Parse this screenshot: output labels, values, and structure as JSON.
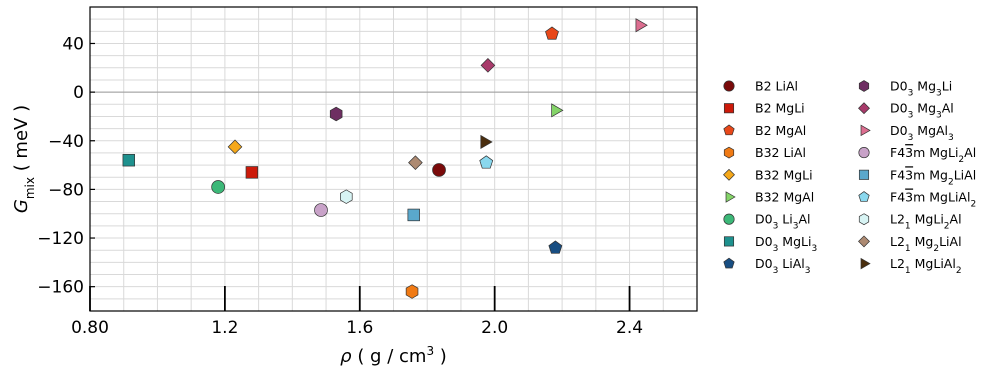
{
  "chart_data": {
    "type": "scatter",
    "title": "",
    "xlabel": {
      "main": "ρ ( g / cm",
      "sup": "3",
      "end": " )"
    },
    "ylabel": {
      "main": "G",
      "sub": "mix",
      "end": " ( meV )"
    },
    "xlim": [
      0.8,
      2.6
    ],
    "ylim": [
      -180,
      70
    ],
    "x_ticks": [
      0.8,
      1.2,
      1.6,
      2.0,
      2.4
    ],
    "x_tick_labels": [
      "0.80",
      "1.2",
      "1.6",
      "2.0",
      "2.4"
    ],
    "y_ticks": [
      40,
      0,
      -40,
      -80,
      -120,
      -160
    ],
    "y_tick_labels": [
      "40",
      "0",
      "−40",
      "−80",
      "−120",
      "−160"
    ],
    "grid": true,
    "legend_position": "right",
    "series": [
      {
        "name": [
          {
            "t": "B2 LiAl"
          }
        ],
        "marker": "circle",
        "color": "#7a0a0a",
        "x": 1.835,
        "y": -64
      },
      {
        "name": [
          {
            "t": "B2 MgLi"
          }
        ],
        "marker": "square",
        "color": "#cc1a0a",
        "x": 1.28,
        "y": -66
      },
      {
        "name": [
          {
            "t": "B2 MgAl"
          }
        ],
        "marker": "pentagon",
        "color": "#e8481a",
        "x": 2.17,
        "y": 48
      },
      {
        "name": [
          {
            "t": "B32 LiAl"
          }
        ],
        "marker": "hexagon",
        "color": "#f07a14",
        "x": 1.755,
        "y": -164
      },
      {
        "name": [
          {
            "t": "B32 MgLi"
          }
        ],
        "marker": "diamond",
        "color": "#f5a81a",
        "x": 1.23,
        "y": -45
      },
      {
        "name": [
          {
            "t": "B32 MgAl"
          }
        ],
        "marker": "triangle-right",
        "color": "#84d468",
        "x": 2.18,
        "y": -15
      },
      {
        "name": [
          {
            "t": "D0"
          },
          {
            "t": "3",
            "sub": true
          },
          {
            "t": " Li"
          },
          {
            "t": "3",
            "sub": true
          },
          {
            "t": "Al"
          }
        ],
        "marker": "circle",
        "color": "#3cb878",
        "x": 1.18,
        "y": -78
      },
      {
        "name": [
          {
            "t": "D0"
          },
          {
            "t": "3",
            "sub": true
          },
          {
            "t": " MgLi"
          },
          {
            "t": "3",
            "sub": true
          }
        ],
        "marker": "square",
        "color": "#1e918e",
        "x": 0.915,
        "y": -56
      },
      {
        "name": [
          {
            "t": "D0"
          },
          {
            "t": "3",
            "sub": true
          },
          {
            "t": " LiAl"
          },
          {
            "t": "3",
            "sub": true
          }
        ],
        "marker": "pentagon",
        "color": "#184e82",
        "x": 2.18,
        "y": -128
      },
      {
        "name": [
          {
            "t": "D0"
          },
          {
            "t": "3",
            "sub": true
          },
          {
            "t": " Mg"
          },
          {
            "t": "3",
            "sub": true
          },
          {
            "t": "Li"
          }
        ],
        "marker": "hexagon",
        "color": "#6e2e62",
        "x": 1.53,
        "y": -18
      },
      {
        "name": [
          {
            "t": "D0"
          },
          {
            "t": "3",
            "sub": true
          },
          {
            "t": " Mg"
          },
          {
            "t": "3",
            "sub": true
          },
          {
            "t": "Al"
          }
        ],
        "marker": "diamond",
        "color": "#a83a6a",
        "x": 1.98,
        "y": 22
      },
      {
        "name": [
          {
            "t": "D0"
          },
          {
            "t": "3",
            "sub": true
          },
          {
            "t": " MgAl"
          },
          {
            "t": "3",
            "sub": true
          }
        ],
        "marker": "triangle-right",
        "color": "#dc6e90",
        "x": 2.43,
        "y": 55
      },
      {
        "name": [
          {
            "t": "F4"
          },
          {
            "t": "3",
            "over": true
          },
          {
            "t": "m MgLi"
          },
          {
            "t": "2",
            "sub": true
          },
          {
            "t": "Al"
          }
        ],
        "marker": "circle",
        "color": "#c8a2c8",
        "x": 1.485,
        "y": -97
      },
      {
        "name": [
          {
            "t": "F4"
          },
          {
            "t": "3",
            "over": true
          },
          {
            "t": "m Mg"
          },
          {
            "t": "2",
            "sub": true
          },
          {
            "t": "LiAl"
          }
        ],
        "marker": "square",
        "color": "#5aa8cc",
        "x": 1.76,
        "y": -101
      },
      {
        "name": [
          {
            "t": "F4"
          },
          {
            "t": "3",
            "over": true
          },
          {
            "t": "m MgLiAl"
          },
          {
            "t": "2",
            "sub": true
          }
        ],
        "marker": "pentagon",
        "color": "#8ad8ee",
        "x": 1.975,
        "y": -58
      },
      {
        "name": [
          {
            "t": "L2"
          },
          {
            "t": "1",
            "sub": true
          },
          {
            "t": " MgLi"
          },
          {
            "t": "2",
            "sub": true
          },
          {
            "t": "Al"
          }
        ],
        "marker": "hexagon",
        "color": "#d8f4f4",
        "x": 1.56,
        "y": -86
      },
      {
        "name": [
          {
            "t": "L2"
          },
          {
            "t": "1",
            "sub": true
          },
          {
            "t": " Mg"
          },
          {
            "t": "2",
            "sub": true
          },
          {
            "t": "LiAl"
          }
        ],
        "marker": "diamond",
        "color": "#ad8a72",
        "x": 1.765,
        "y": -58
      },
      {
        "name": [
          {
            "t": "L2"
          },
          {
            "t": "1",
            "sub": true
          },
          {
            "t": " MgLiAl"
          },
          {
            "t": "2",
            "sub": true
          }
        ],
        "marker": "triangle-right",
        "color": "#4a2e0e",
        "x": 1.97,
        "y": -41
      }
    ]
  }
}
